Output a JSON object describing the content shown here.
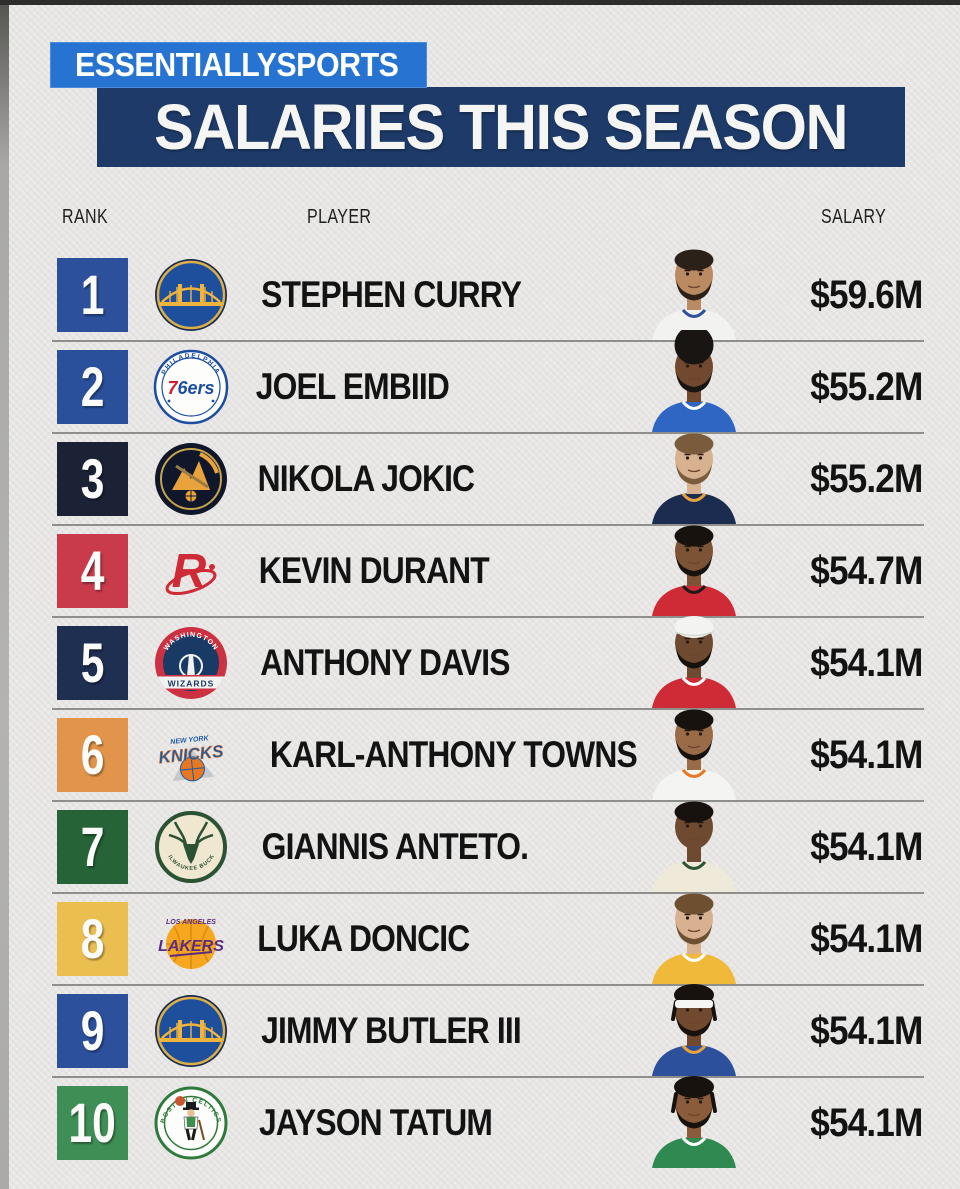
{
  "header": {
    "brand": "ESSENTIALLYSPORTS",
    "title": "SALARIES THIS SEASON"
  },
  "colors": {
    "brand_blue": "#2673D1",
    "title_navy": "#1D3A68",
    "background": "#E6E5E3",
    "divider": "#8E8E8B",
    "text_dark": "#131313"
  },
  "table": {
    "columns": [
      "RANK",
      "PLAYER",
      "SALARY"
    ],
    "rows": [
      {
        "rank": "1",
        "player": "STEPHEN CURRY",
        "salary": "$59.6M",
        "team": "Golden State Warriors",
        "logo": "warriors-logo",
        "logo_text": [],
        "rank_color": "#2C509B",
        "avatar": {
          "skin": "#BA8A62",
          "hair": "#2B2118",
          "style": "short",
          "beard": true,
          "headband": false,
          "jersey": "#F2F2F0",
          "trim": "#2C509B"
        }
      },
      {
        "rank": "2",
        "player": "JOEL EMBIID",
        "salary": "$55.2M",
        "team": "Philadelphia 76ers",
        "logo": "sixers-logo",
        "logo_text": [
          "PHILADELPHIA",
          "76ers"
        ],
        "rank_color": "#2A509C",
        "avatar": {
          "skin": "#70492F",
          "hair": "#191512",
          "style": "afro",
          "beard": true,
          "headband": false,
          "jersey": "#2F66C4",
          "trim": "#FFFFFF"
        }
      },
      {
        "rank": "3",
        "player": "NIKOLA JOKIC",
        "salary": "$55.2M",
        "team": "Denver Nuggets",
        "logo": "nuggets-logo",
        "logo_text": [],
        "rank_color": "#1B2236",
        "avatar": {
          "skin": "#D8B191",
          "hair": "#7A5B3C",
          "style": "short",
          "beard": true,
          "headband": false,
          "jersey": "#1C2C50",
          "trim": "#E8A33C"
        }
      },
      {
        "rank": "4",
        "player": "KEVIN DURANT",
        "salary": "$54.7M",
        "team": "Houston Rockets",
        "logo": "rockets-logo",
        "logo_text": [],
        "rank_color": "#C93A4B",
        "avatar": {
          "skin": "#7C5435",
          "hair": "#17120E",
          "style": "short",
          "beard": true,
          "headband": false,
          "jersey": "#CE2B37",
          "trim": "#1A1A1A"
        }
      },
      {
        "rank": "5",
        "player": "ANTHONY DAVIS",
        "salary": "$54.1M",
        "team": "Washington Wizards",
        "logo": "wizards-logo",
        "logo_text": [
          "WASHINGTON",
          "WIZARDS"
        ],
        "rank_color": "#1E2F52",
        "avatar": {
          "skin": "#6E4A30",
          "hair": "#15110D",
          "style": "wrap",
          "beard": true,
          "headband": false,
          "jersey": "#CE2B37",
          "trim": "#FFFFFF"
        }
      },
      {
        "rank": "6",
        "player": "KARL-ANTHONY TOWNS",
        "salary": "$54.1M",
        "team": "New York Knicks",
        "logo": "knicks-logo",
        "logo_text": [
          "NEW YORK",
          "KNICKS"
        ],
        "rank_color": "#E2954A",
        "avatar": {
          "skin": "#9A6B47",
          "hair": "#17120E",
          "style": "short",
          "beard": true,
          "headband": false,
          "jersey": "#F4F4F2",
          "trim": "#E87722"
        }
      },
      {
        "rank": "7",
        "player": "GIANNIS ANTETO.",
        "salary": "$54.1M",
        "team": "Milwaukee Bucks",
        "logo": "bucks-logo",
        "logo_text": [
          "MILWAUKEE BUCKS"
        ],
        "rank_color": "#266337",
        "avatar": {
          "skin": "#6E4A30",
          "hair": "#17120E",
          "style": "short",
          "beard": false,
          "headband": false,
          "jersey": "#EFE9DA",
          "trim": "#2C5234"
        }
      },
      {
        "rank": "8",
        "player": "LUKA DONCIC",
        "salary": "$54.1M",
        "team": "Los Angeles Lakers",
        "logo": "lakers-logo",
        "logo_text": [
          "LOS ANGELES",
          "LAKERS"
        ],
        "rank_color": "#EBBE50",
        "avatar": {
          "skin": "#D8B191",
          "hair": "#6E4F2F",
          "style": "short",
          "beard": true,
          "headband": false,
          "jersey": "#F0B93A",
          "trim": "#FFFFFF"
        }
      },
      {
        "rank": "9",
        "player": "JIMMY BUTLER III",
        "salary": "$54.1M",
        "team": "Golden State Warriors",
        "logo": "warriors-logo",
        "logo_text": [],
        "rank_color": "#2C509B",
        "avatar": {
          "skin": "#71492E",
          "hair": "#17120E",
          "style": "braids",
          "beard": true,
          "headband": true,
          "jersey": "#2C509B",
          "trim": "#E8A33C"
        }
      },
      {
        "rank": "10",
        "player": "JAYSON TATUM",
        "salary": "$54.1M",
        "team": "Boston Celtics",
        "logo": "celtics-logo",
        "logo_text": [
          "BOSTON",
          "CELTICS"
        ],
        "rank_color": "#3F8E55",
        "avatar": {
          "skin": "#8A5C3B",
          "hair": "#17120E",
          "style": "braids",
          "beard": true,
          "headband": false,
          "jersey": "#2F8A52",
          "trim": "#FFFFFF"
        }
      }
    ]
  },
  "chart_data": {
    "type": "table",
    "title": "SALARIES THIS SEASON",
    "columns": [
      "RANK",
      "PLAYER",
      "SALARY"
    ],
    "rows": [
      [
        1,
        "STEPHEN CURRY",
        "$59.6M"
      ],
      [
        2,
        "JOEL EMBIID",
        "$55.2M"
      ],
      [
        3,
        "NIKOLA JOKIC",
        "$55.2M"
      ],
      [
        4,
        "KEVIN DURANT",
        "$54.7M"
      ],
      [
        5,
        "ANTHONY DAVIS",
        "$54.1M"
      ],
      [
        6,
        "KARL-ANTHONY TOWNS",
        "$54.1M"
      ],
      [
        7,
        "GIANNIS ANTETO.",
        "$54.1M"
      ],
      [
        8,
        "LUKA DONCIC",
        "$54.1M"
      ],
      [
        9,
        "JIMMY BUTLER III",
        "$54.1M"
      ],
      [
        10,
        "JAYSON TATUM",
        "$54.1M"
      ]
    ],
    "salary_values_musd": [
      59.6,
      55.2,
      55.2,
      54.7,
      54.1,
      54.1,
      54.1,
      54.1,
      54.1,
      54.1
    ]
  }
}
